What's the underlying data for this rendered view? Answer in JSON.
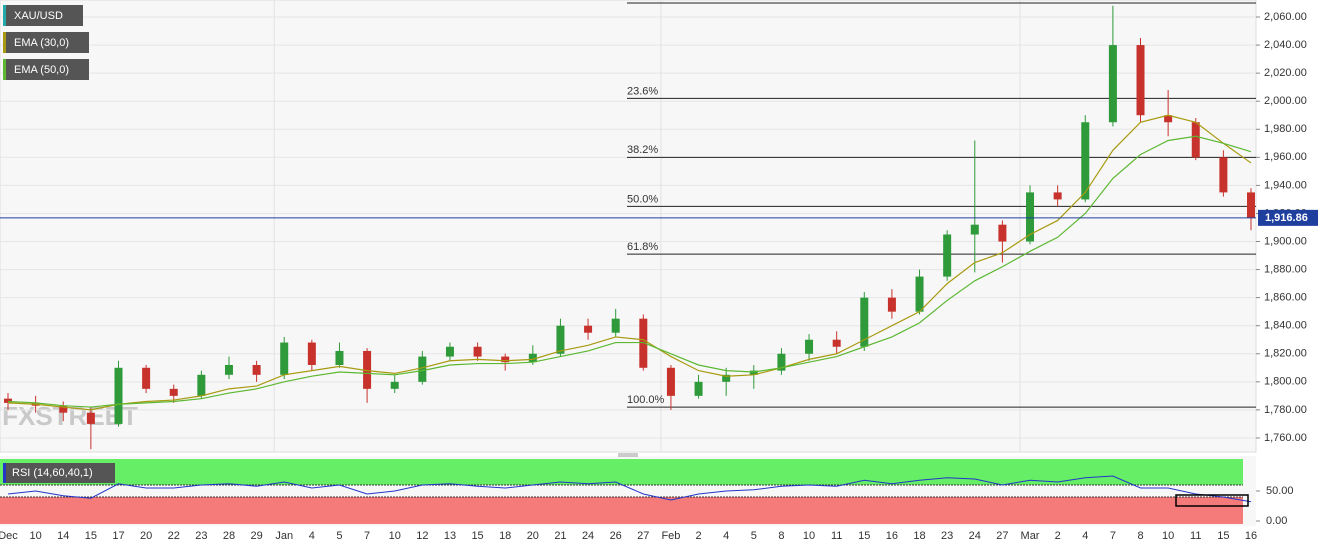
{
  "chart_data": [
    {
      "type": "candlestick",
      "title": "XAU/USD",
      "watermark": "FXSTREET",
      "categories": [
        "Dec",
        "10",
        "14",
        "15",
        "17",
        "20",
        "22",
        "23",
        "28",
        "29",
        "Jan",
        "4",
        "5",
        "7",
        "10",
        "12",
        "13",
        "15",
        "18",
        "20",
        "21",
        "24",
        "26",
        "27",
        "Feb",
        "2",
        "4",
        "5",
        "8",
        "10",
        "11",
        "15",
        "16",
        "18",
        "23",
        "24",
        "27",
        "Mar",
        "2",
        "4",
        "7",
        "8",
        "10",
        "11",
        "15",
        "16"
      ],
      "open": [
        1788,
        1785,
        1783,
        1778,
        1770,
        1810,
        1795,
        1790,
        1805,
        1812,
        1805,
        1828,
        1812,
        1822,
        1795,
        1800,
        1818,
        1825,
        1818,
        1814,
        1820,
        1840,
        1835,
        1845,
        1810,
        1790,
        1800,
        1805,
        1808,
        1820,
        1830,
        1825,
        1860,
        1850,
        1875,
        1905,
        1912,
        1900,
        1935,
        1930,
        1985,
        2040,
        1990,
        1985,
        1960,
        1935
      ],
      "high": [
        1792,
        1790,
        1786,
        1782,
        1815,
        1812,
        1798,
        1808,
        1818,
        1815,
        1832,
        1830,
        1828,
        1824,
        1805,
        1822,
        1828,
        1828,
        1820,
        1826,
        1845,
        1845,
        1852,
        1848,
        1812,
        1805,
        1810,
        1812,
        1824,
        1834,
        1836,
        1864,
        1866,
        1880,
        1908,
        1972,
        1915,
        1940,
        1940,
        1990,
        2068,
        2045,
        2008,
        1988,
        1965,
        1938
      ],
      "low": [
        1780,
        1778,
        1772,
        1752,
        1768,
        1792,
        1785,
        1788,
        1802,
        1800,
        1802,
        1808,
        1810,
        1785,
        1792,
        1798,
        1815,
        1815,
        1808,
        1812,
        1818,
        1830,
        1832,
        1808,
        1780,
        1788,
        1790,
        1795,
        1805,
        1815,
        1820,
        1822,
        1845,
        1848,
        1872,
        1878,
        1885,
        1898,
        1925,
        1928,
        1982,
        1985,
        1975,
        1958,
        1932,
        1908
      ],
      "close": [
        1785,
        1783,
        1778,
        1770,
        1810,
        1795,
        1790,
        1805,
        1812,
        1805,
        1828,
        1812,
        1822,
        1795,
        1800,
        1818,
        1825,
        1818,
        1814,
        1820,
        1840,
        1835,
        1845,
        1810,
        1790,
        1800,
        1805,
        1808,
        1820,
        1830,
        1825,
        1860,
        1850,
        1875,
        1905,
        1912,
        1900,
        1935,
        1930,
        1985,
        2040,
        1990,
        1985,
        1960,
        1935,
        1917
      ],
      "up_color": "#2e9a3a",
      "down_color": "#c8322c",
      "overlays": [
        {
          "name": "EMA (30,0)",
          "color": "#a89a10",
          "values": [
            1785,
            1784,
            1782,
            1780,
            1784,
            1786,
            1787,
            1790,
            1795,
            1797,
            1805,
            1808,
            1811,
            1808,
            1806,
            1810,
            1815,
            1816,
            1815,
            1816,
            1822,
            1826,
            1832,
            1830,
            1818,
            1808,
            1804,
            1805,
            1810,
            1816,
            1820,
            1830,
            1840,
            1850,
            1870,
            1885,
            1892,
            1905,
            1915,
            1935,
            1965,
            1985,
            1990,
            1985,
            1970,
            1956
          ]
        },
        {
          "name": "EMA (50,0)",
          "color": "#5cb832",
          "values": [
            1786,
            1785,
            1783,
            1782,
            1784,
            1785,
            1786,
            1788,
            1792,
            1795,
            1800,
            1804,
            1807,
            1806,
            1805,
            1808,
            1812,
            1813,
            1813,
            1814,
            1818,
            1822,
            1828,
            1828,
            1820,
            1812,
            1808,
            1807,
            1810,
            1814,
            1818,
            1825,
            1832,
            1842,
            1858,
            1872,
            1882,
            1893,
            1903,
            1920,
            1945,
            1962,
            1972,
            1975,
            1970,
            1964
          ]
        }
      ],
      "fib_levels": [
        {
          "value": 2070
        },
        {
          "label": "23.6%",
          "value": 2002
        },
        {
          "label": "38.2%",
          "value": 1960
        },
        {
          "label": "50.0%",
          "value": 1925
        },
        {
          "label": "61.8%",
          "value": 1891
        },
        {
          "label": "100.0%",
          "value": 1782
        }
      ],
      "last_price": {
        "value": 1916.86,
        "label": "1,916.86"
      },
      "last_price_color": "#1f3f9f",
      "ylim": [
        1750.7,
        2070.7
      ],
      "yticks": [
        {
          "value": 1760,
          "label": "1,760.00"
        },
        {
          "value": 1780,
          "label": "1,780.00"
        },
        {
          "value": 1800,
          "label": "1,800.00"
        },
        {
          "value": 1820,
          "label": "1,820.00"
        },
        {
          "value": 1840,
          "label": "1,840.00"
        },
        {
          "value": 1860,
          "label": "1,860.00"
        },
        {
          "value": 1880,
          "label": "1,880.00"
        },
        {
          "value": 1900,
          "label": "1,900.00"
        },
        {
          "value": 1920,
          "label": "1,920.00"
        },
        {
          "value": 1940,
          "label": "1,940.00"
        },
        {
          "value": 1960,
          "label": "1,960.00"
        },
        {
          "value": 1980,
          "label": "1,980.00"
        },
        {
          "value": 2000,
          "label": "2,000.00"
        },
        {
          "value": 2020,
          "label": "2,020.00"
        },
        {
          "value": 2040,
          "label": "2,040.00"
        },
        {
          "value": 2060,
          "label": "2,060.00"
        }
      ],
      "grid": true
    },
    {
      "type": "line",
      "title": "RSI (14,60,40,1)",
      "series": [
        {
          "color": "#2236c8",
          "values": [
            45,
            50,
            42,
            38,
            62,
            55,
            55,
            60,
            62,
            58,
            65,
            55,
            60,
            45,
            50,
            60,
            62,
            58,
            55,
            60,
            65,
            62,
            65,
            45,
            35,
            45,
            50,
            52,
            58,
            60,
            58,
            68,
            62,
            68,
            72,
            70,
            60,
            68,
            65,
            72,
            75,
            55,
            55,
            45,
            40,
            32
          ]
        }
      ],
      "upper_band": 60,
      "lower_band": 40,
      "upper_color": "#66ee66",
      "lower_color": "#f57a7a",
      "ylim": [
        0,
        100
      ],
      "yticks": [
        {
          "value": 50,
          "label": "50.00"
        },
        {
          "value": 0,
          "label": "0.00"
        }
      ]
    }
  ]
}
